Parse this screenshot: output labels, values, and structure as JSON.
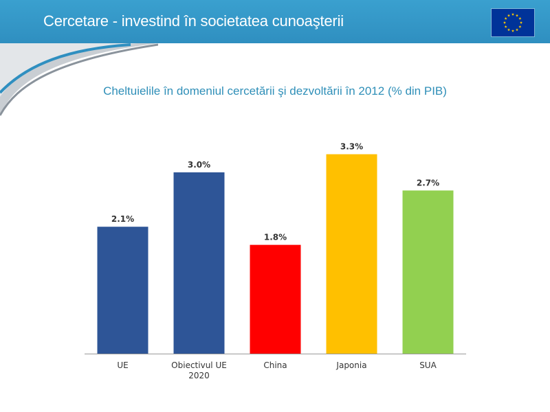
{
  "header": {
    "title": "Cercetare - investind în societatea cunoaşterii",
    "flag_icon": "eu-flag-icon"
  },
  "colors": {
    "header_bg": "#3399c9",
    "title_text": "#2f8fb8",
    "axis": "#999999"
  },
  "chart_data": {
    "type": "bar",
    "title": "Cheltuielile în domeniul cercetării şi dezvoltării în 2012 (% din PIB)",
    "xlabel": "",
    "ylabel": "",
    "ylim": [
      0,
      3.8
    ],
    "grid": false,
    "categories": [
      [
        "UE"
      ],
      [
        "Obiectivul UE",
        "2020"
      ],
      [
        "China"
      ],
      [
        "Japonia"
      ],
      [
        "SUA"
      ]
    ],
    "values": [
      2.1,
      3.0,
      1.8,
      3.3,
      2.7
    ],
    "value_labels": [
      "2.1%",
      "3.0%",
      "1.8%",
      "3.3%",
      "2.7%"
    ],
    "bar_colors": [
      "#2e5597",
      "#2e5597",
      "#ff0000",
      "#ffc000",
      "#92d050"
    ]
  }
}
